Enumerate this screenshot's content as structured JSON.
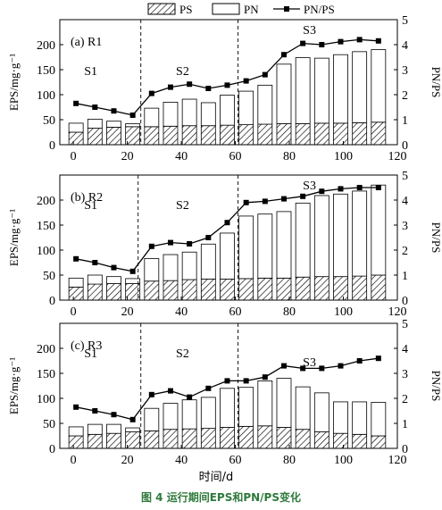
{
  "figure": {
    "caption": "图 4 运行期间EPS和PN/PS变化",
    "xlabel": "时间/d",
    "colors": {
      "pn_line": "#000000",
      "ps_fill": "hatch",
      "pn_fill": "#ffffff",
      "accent_caption": "#2f7a3c"
    }
  },
  "legend": [
    {
      "key": "PS",
      "label": "PS"
    },
    {
      "key": "PN",
      "label": "PN"
    },
    {
      "key": "PNPS",
      "label": "PN/PS"
    }
  ],
  "chart_data": [
    {
      "type": "bar",
      "panel_label": "(a) R1",
      "stage_labels": [
        "S1",
        "S2",
        "S3"
      ],
      "stage_boundaries_x": [
        25,
        61
      ],
      "ylabel": "EPS/mg·g⁻¹",
      "y2label": "PN/PS",
      "xlim": [
        -5,
        120
      ],
      "xticks": [
        0,
        20,
        40,
        60,
        80,
        100,
        120
      ],
      "ylim": [
        0,
        250
      ],
      "yticks": [
        0,
        50,
        100,
        150,
        200
      ],
      "y2lim": [
        0,
        5
      ],
      "y2ticks": [
        0,
        1,
        2,
        3,
        4,
        5
      ],
      "x": [
        1,
        8,
        15,
        22,
        29,
        36,
        43,
        50,
        57,
        64,
        71,
        78,
        85,
        92,
        99,
        106,
        113
      ],
      "ps": [
        25,
        33,
        35,
        36,
        36,
        37,
        38,
        38,
        39,
        40,
        41,
        42,
        42,
        43,
        43,
        44,
        45
      ],
      "pn": [
        18,
        18,
        12,
        6,
        37,
        48,
        53,
        46,
        60,
        67,
        78,
        119,
        132,
        130,
        137,
        142,
        145
      ],
      "pnps": [
        1.65,
        1.5,
        1.35,
        1.18,
        2.05,
        2.3,
        2.42,
        2.25,
        2.38,
        2.55,
        2.8,
        3.6,
        4.05,
        4.0,
        4.12,
        4.2,
        4.15
      ]
    },
    {
      "type": "bar",
      "panel_label": "(b) R2",
      "stage_labels": [
        "S1",
        "S2",
        "S3"
      ],
      "stage_boundaries_x": [
        24,
        61
      ],
      "ylabel": "EPS/mg·g⁻¹",
      "y2label": "PN/PS",
      "xlim": [
        -5,
        120
      ],
      "xticks": [
        0,
        20,
        40,
        60,
        80,
        100,
        120
      ],
      "ylim": [
        0,
        250
      ],
      "yticks": [
        0,
        50,
        100,
        150,
        200
      ],
      "y2lim": [
        0,
        5
      ],
      "y2ticks": [
        0,
        1,
        2,
        3,
        4,
        5
      ],
      "x": [
        1,
        8,
        15,
        22,
        29,
        36,
        43,
        50,
        57,
        64,
        71,
        78,
        85,
        92,
        99,
        106,
        113
      ],
      "ps": [
        26,
        32,
        33,
        33,
        38,
        39,
        41,
        42,
        42,
        43,
        44,
        44,
        46,
        47,
        47,
        48,
        50
      ],
      "pn": [
        18,
        18,
        14,
        10,
        45,
        52,
        55,
        70,
        92,
        125,
        128,
        133,
        148,
        162,
        165,
        170,
        180
      ],
      "pnps": [
        1.65,
        1.5,
        1.3,
        1.15,
        2.15,
        2.3,
        2.25,
        2.5,
        3.1,
        3.9,
        3.95,
        4.05,
        4.15,
        4.35,
        4.45,
        4.5,
        4.5
      ]
    },
    {
      "type": "bar",
      "panel_label": "(c) R3",
      "stage_labels": [
        "S1",
        "S2",
        "S3"
      ],
      "stage_boundaries_x": [
        25,
        61
      ],
      "ylabel": "EPS/mg·g⁻¹",
      "y2label": "PN/PS",
      "xlim": [
        -5,
        120
      ],
      "xticks": [
        0,
        20,
        40,
        60,
        80,
        100,
        120
      ],
      "ylim": [
        0,
        250
      ],
      "yticks": [
        0,
        50,
        100,
        150,
        200
      ],
      "y2lim": [
        0,
        5
      ],
      "y2ticks": [
        0,
        1,
        2,
        3,
        4,
        5
      ],
      "x": [
        1,
        8,
        15,
        22,
        29,
        36,
        43,
        50,
        57,
        64,
        71,
        78,
        85,
        92,
        99,
        106,
        113
      ],
      "ps": [
        25,
        28,
        30,
        33,
        35,
        38,
        39,
        40,
        42,
        44,
        45,
        42,
        38,
        33,
        30,
        28,
        25
      ],
      "pn": [
        18,
        20,
        18,
        8,
        45,
        52,
        58,
        62,
        78,
        78,
        90,
        98,
        85,
        78,
        63,
        65,
        67
      ],
      "pnps": [
        1.65,
        1.5,
        1.35,
        1.15,
        2.15,
        2.3,
        2.05,
        2.4,
        2.7,
        2.7,
        2.85,
        3.3,
        3.2,
        3.2,
        3.3,
        3.5,
        3.6
      ]
    }
  ]
}
